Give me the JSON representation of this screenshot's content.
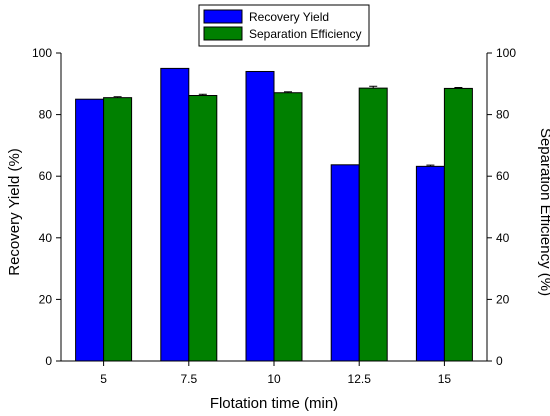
{
  "chart_data": {
    "type": "bar",
    "title": "",
    "xlabel": "Flotation time (min)",
    "ylabel_left": "Recovery Yield (%)",
    "ylabel_right": "Separation Efficiency (%)",
    "categories": [
      "5",
      "7.5",
      "10",
      "12.5",
      "15"
    ],
    "ylim": [
      0,
      100
    ],
    "y_ticks": [
      "0",
      "20",
      "40",
      "60",
      "80",
      "100"
    ],
    "series": [
      {
        "name": "Recovery Yield",
        "color": "#0000ff",
        "axis": "left",
        "values": [
          85,
          95,
          94,
          63.7,
          63.2
        ],
        "errors": [
          0,
          0,
          0,
          0,
          0.4
        ]
      },
      {
        "name": "Separation Efficiency",
        "color": "#008000",
        "axis": "right",
        "values": [
          85.5,
          86.2,
          87.1,
          88.6,
          88.5
        ],
        "errors": [
          0.3,
          0.4,
          0.3,
          0.6,
          0.3
        ]
      }
    ],
    "legend_position": "top-center",
    "grid": false
  }
}
